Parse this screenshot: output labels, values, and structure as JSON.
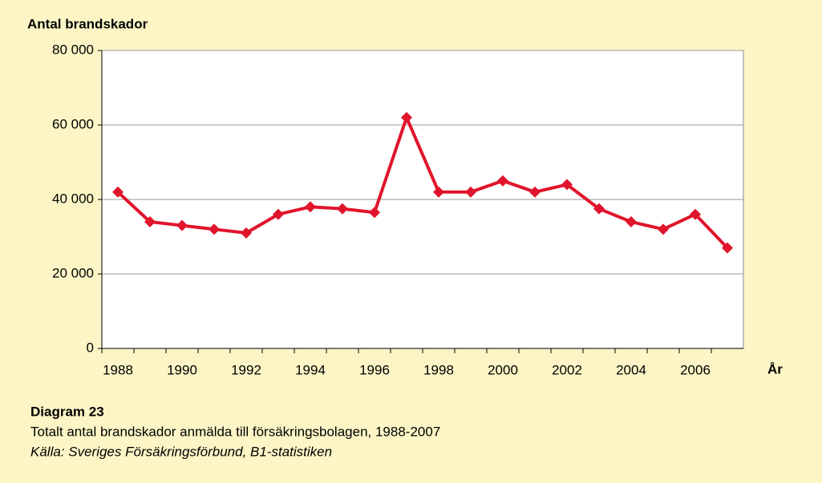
{
  "chart_data": {
    "type": "line",
    "ylabel": "Antal brandskador",
    "xlabel": "År",
    "caption_title": "Diagram 23",
    "caption": "Totalt antal brandskador anmälda till försäkringsbolagen, 1988-2007",
    "source": "Källa: Sveriges Försäkringsförbund, B1-statistiken",
    "categories": [
      "1988",
      null,
      "1990",
      null,
      "1992",
      null,
      "1994",
      null,
      "1996",
      null,
      "1998",
      null,
      "2000",
      null,
      "2002",
      null,
      "2004",
      null,
      "2006",
      null
    ],
    "series": [
      {
        "name": "Antal brandskador",
        "color": "#e0142b",
        "values": [
          42000,
          34000,
          33000,
          32000,
          31000,
          36000,
          38000,
          37500,
          36500,
          62000,
          42000,
          42000,
          45000,
          42000,
          44000,
          37500,
          34000,
          32000,
          36000,
          27000
        ]
      }
    ],
    "ylim": [
      0,
      80000
    ],
    "yticks": [
      0,
      {
        "value": 20000,
        "label": "20 000"
      },
      {
        "value": 40000,
        "label": "40 000"
      },
      {
        "value": 60000,
        "label": "60 000"
      },
      {
        "value": 80000,
        "label": "80 000"
      }
    ],
    "grid": true
  }
}
